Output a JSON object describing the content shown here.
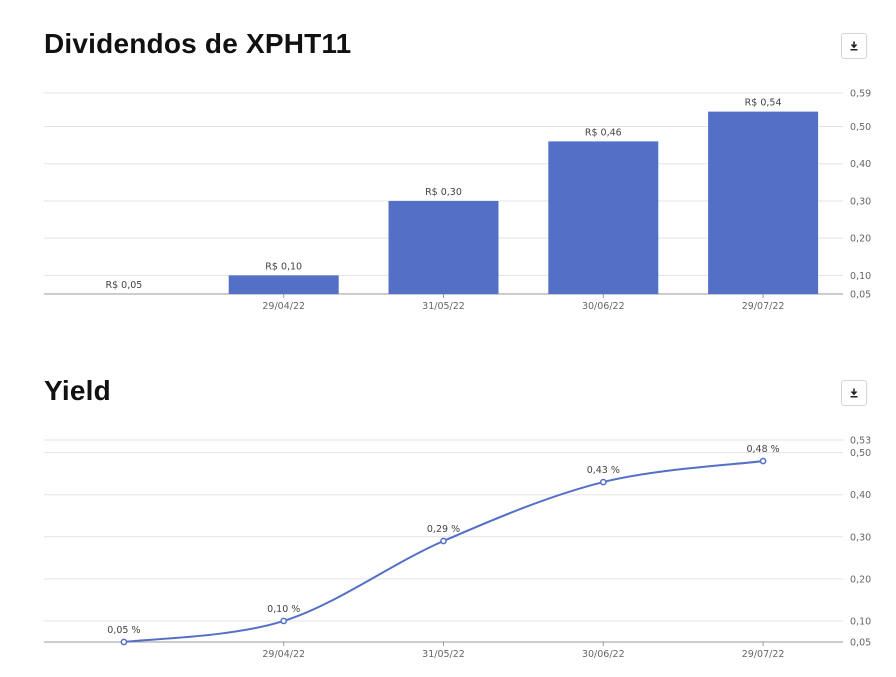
{
  "colors": {
    "series": "#5470c6",
    "grid": "#e3e3e3",
    "axis": "#999999",
    "text": "#666666"
  },
  "download_icon": "download-icon",
  "charts": [
    {
      "title": "Dividendos de XPHT11"
    },
    {
      "title": "Yield"
    }
  ],
  "chart_data": [
    {
      "type": "bar",
      "title": "Dividendos de XPHT11",
      "categories": [
        "",
        "29/04/22",
        "31/05/22",
        "30/06/22",
        "29/07/22"
      ],
      "values": [
        0.05,
        0.1,
        0.3,
        0.46,
        0.54
      ],
      "labels": [
        "R$ 0,05",
        "R$ 0,10",
        "R$ 0,30",
        "R$ 0,46",
        "R$ 0,54"
      ],
      "y_ticks": [
        0.05,
        0.1,
        0.2,
        0.3,
        0.4,
        0.5,
        0.59
      ],
      "y_tick_labels": [
        "0,05",
        "0,10",
        "0,20",
        "0,30",
        "0,40",
        "0,50",
        "0,59"
      ],
      "ylim": [
        0.05,
        0.59
      ],
      "y_axis_side": "right",
      "grid": true
    },
    {
      "type": "line",
      "title": "Yield",
      "categories": [
        "",
        "29/04/22",
        "31/05/22",
        "30/06/22",
        "29/07/22"
      ],
      "values": [
        0.05,
        0.1,
        0.29,
        0.43,
        0.48
      ],
      "labels": [
        "0,05 %",
        "0,10 %",
        "0,29 %",
        "0,43 %",
        "0,48 %"
      ],
      "y_ticks": [
        0.05,
        0.1,
        0.2,
        0.3,
        0.4,
        0.5,
        0.53
      ],
      "y_tick_labels": [
        "0,05",
        "0,10",
        "0,20",
        "0,30",
        "0,40",
        "0,50",
        "0,53"
      ],
      "ylim": [
        0.05,
        0.53
      ],
      "y_axis_side": "right",
      "grid": true,
      "smooth": true
    }
  ]
}
